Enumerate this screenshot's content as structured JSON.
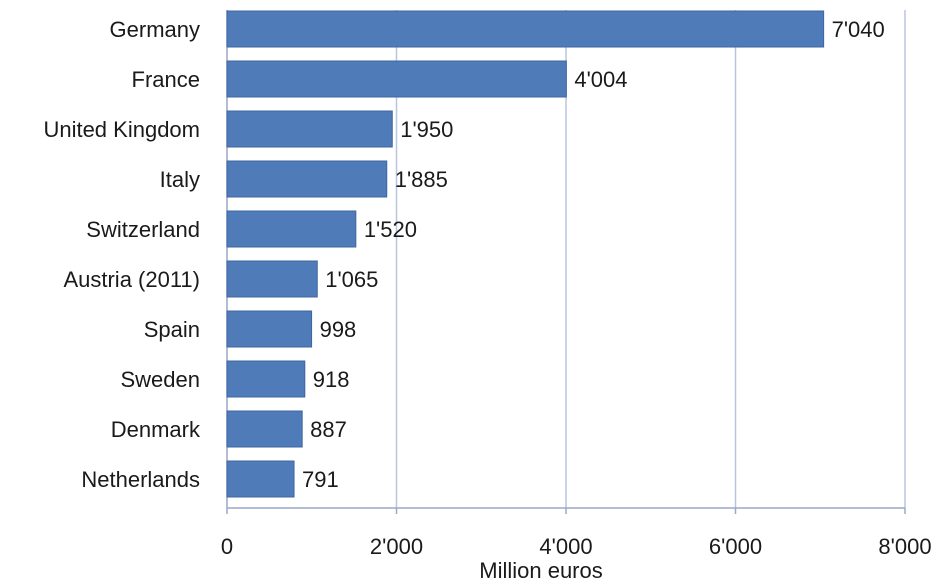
{
  "chart_data": {
    "type": "bar",
    "orientation": "horizontal",
    "categories": [
      "Germany",
      "France",
      "United Kingdom",
      "Italy",
      "Switzerland",
      "Austria (2011)",
      "Spain",
      "Sweden",
      "Denmark",
      "Netherlands"
    ],
    "values": [
      7040,
      4004,
      1950,
      1885,
      1520,
      1065,
      998,
      918,
      887,
      791
    ],
    "value_labels": [
      "7'040",
      "4'004",
      "1'950",
      "1'885",
      "1'520",
      "1'065",
      "998",
      "918",
      "887",
      "791"
    ],
    "xlabel": "Million euros",
    "xlim": [
      0,
      8000
    ],
    "x_ticks": [
      0,
      2000,
      4000,
      6000,
      8000
    ],
    "x_tick_labels": [
      "0",
      "2'000",
      "4'000",
      "6'000",
      "8'000"
    ],
    "grid": "vertical",
    "legend": "none",
    "bar_color": "#4f7bb8",
    "grid_color": "#b9c6e2"
  }
}
